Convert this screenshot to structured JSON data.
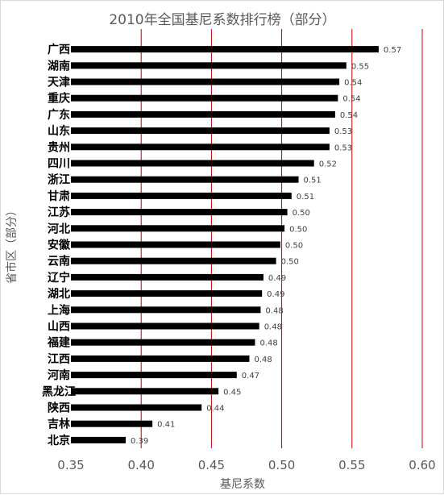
{
  "chart_data": {
    "type": "bar",
    "orientation": "horizontal",
    "title": "2010年全国基尼系数排行榜（部分）",
    "xlabel": "基尼系数",
    "ylabel": "省市区（部分）",
    "xlim": [
      0.35,
      0.6
    ],
    "xticks": [
      "0.35",
      "0.40",
      "0.45",
      "0.50",
      "0.55",
      "0.60"
    ],
    "gridlines": [
      0.4,
      0.45,
      0.5,
      0.55,
      0.6
    ],
    "colors": {
      "bar": "#000000",
      "grid": "#c00000",
      "text": "#595959"
    },
    "categories": [
      "广西",
      "湖南",
      "天津",
      "重庆",
      "广东",
      "山东",
      "贵州",
      "四川",
      "浙江",
      "甘肃",
      "江苏",
      "河北",
      "安徽",
      "云南",
      "辽宁",
      "湖北",
      "上海",
      "山西",
      "福建",
      "江西",
      "河南",
      "黑龙江",
      "陕西",
      "吉林",
      "北京"
    ],
    "values": [
      0.569,
      0.546,
      0.541,
      0.54,
      0.538,
      0.534,
      0.534,
      0.523,
      0.512,
      0.507,
      0.504,
      0.502,
      0.499,
      0.496,
      0.487,
      0.486,
      0.485,
      0.484,
      0.481,
      0.477,
      0.468,
      0.455,
      0.443,
      0.408,
      0.389
    ],
    "labels": [
      "0.57",
      "0.55",
      "0.54",
      "0.54",
      "0.54",
      "0.53",
      "0.53",
      "0.52",
      "0.51",
      "0.51",
      "0.50",
      "0.50",
      "0.50",
      "0.50",
      "0.49",
      "0.49",
      "0.48",
      "0.48",
      "0.48",
      "0.48",
      "0.47",
      "0.45",
      "0.44",
      "0.41",
      "0.39"
    ]
  }
}
